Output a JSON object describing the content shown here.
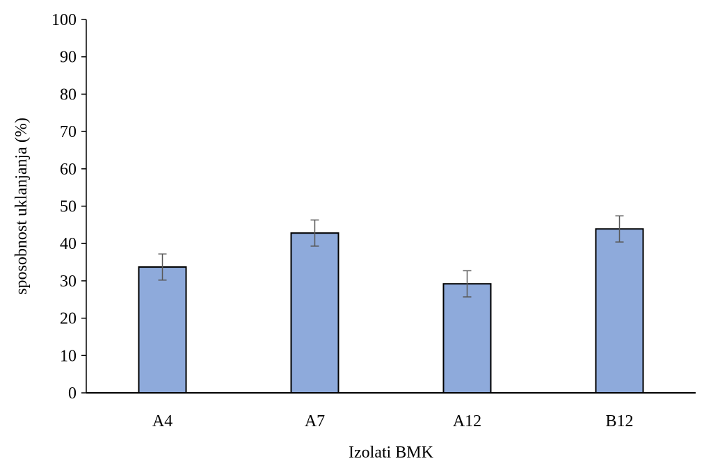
{
  "chart_data": {
    "type": "bar",
    "categories": [
      "A4",
      "A7",
      "A12",
      "B12"
    ],
    "values": [
      33.7,
      42.8,
      29.2,
      43.9
    ],
    "error": [
      3.5,
      3.5,
      3.5,
      3.5
    ],
    "title": "",
    "xlabel": "Izolati BMK",
    "ylabel": "sposobnost uklanjanja (%)",
    "ylim": [
      0,
      100
    ],
    "yticks": [
      0,
      10,
      20,
      30,
      40,
      50,
      60,
      70,
      80,
      90,
      100
    ],
    "grid": false,
    "legend": "none",
    "bar_color": "#8eaadb",
    "bar_edge_color": "#000000",
    "error_color": "#595959"
  }
}
